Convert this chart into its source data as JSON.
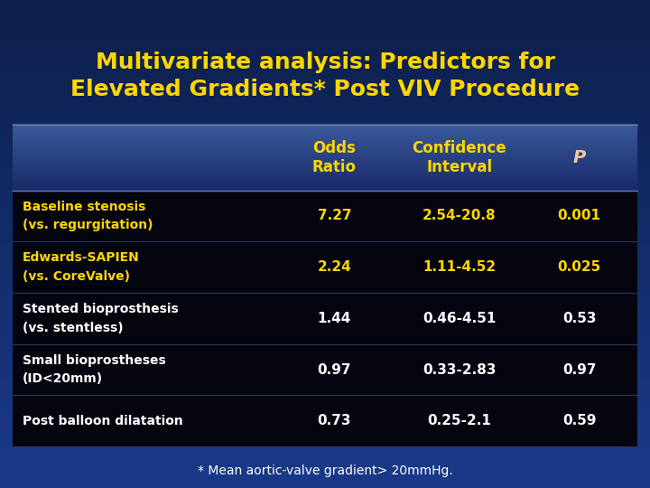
{
  "title_line1": "Multivariate analysis: Predictors for",
  "title_line2": "Elevated Gradients* Post VIV Procedure",
  "title_color": "#FFD700",
  "title_fontsize": 18,
  "bg_color_top": "#0d1f4a",
  "bg_color_bottom": "#1a3a8a",
  "table_bg_color": "#050510",
  "header_bg_top": "#3a5a9a",
  "header_bg_bottom": "#1a2a5a",
  "header_text_color": "#FFD700",
  "header_p_color": "#F0C8A0",
  "footer_text": "* Mean aortic-valve gradient> 20mmHg.",
  "footer_color": "#FFFFFF",
  "col_headers": [
    "Odds\nRatio",
    "Confidence\nInterval",
    "P"
  ],
  "rows": [
    {
      "label_line1": "Baseline stenosis",
      "label_line2": "(vs. regurgitation)",
      "odds_ratio": "7.27",
      "confidence_interval": "2.54-20.8",
      "p_value": "0.001",
      "label_color": "#FFD700",
      "value_color": "#FFD700"
    },
    {
      "label_line1": "Edwards-SAPIEN",
      "label_line2": "(vs. CoreValve)",
      "odds_ratio": "2.24",
      "confidence_interval": "1.11-4.52",
      "p_value": "0.025",
      "label_color": "#FFD700",
      "value_color": "#FFD700"
    },
    {
      "label_line1": "Stented bioprosthesis",
      "label_line2": "(vs. stentless)",
      "odds_ratio": "1.44",
      "confidence_interval": "0.46-4.51",
      "p_value": "0.53",
      "label_color": "#FFFFFF",
      "value_color": "#FFFFFF"
    },
    {
      "label_line1": "Small bioprostheses",
      "label_line2": "(ID<20mm)",
      "odds_ratio": "0.97",
      "confidence_interval": "0.33-2.83",
      "p_value": "0.97",
      "label_color": "#FFFFFF",
      "value_color": "#FFFFFF"
    },
    {
      "label_line1": "Post balloon dilatation",
      "label_line2": "",
      "odds_ratio": "0.73",
      "confidence_interval": "0.25-2.1",
      "p_value": "0.59",
      "label_color": "#FFFFFF",
      "value_color": "#FFFFFF"
    }
  ]
}
